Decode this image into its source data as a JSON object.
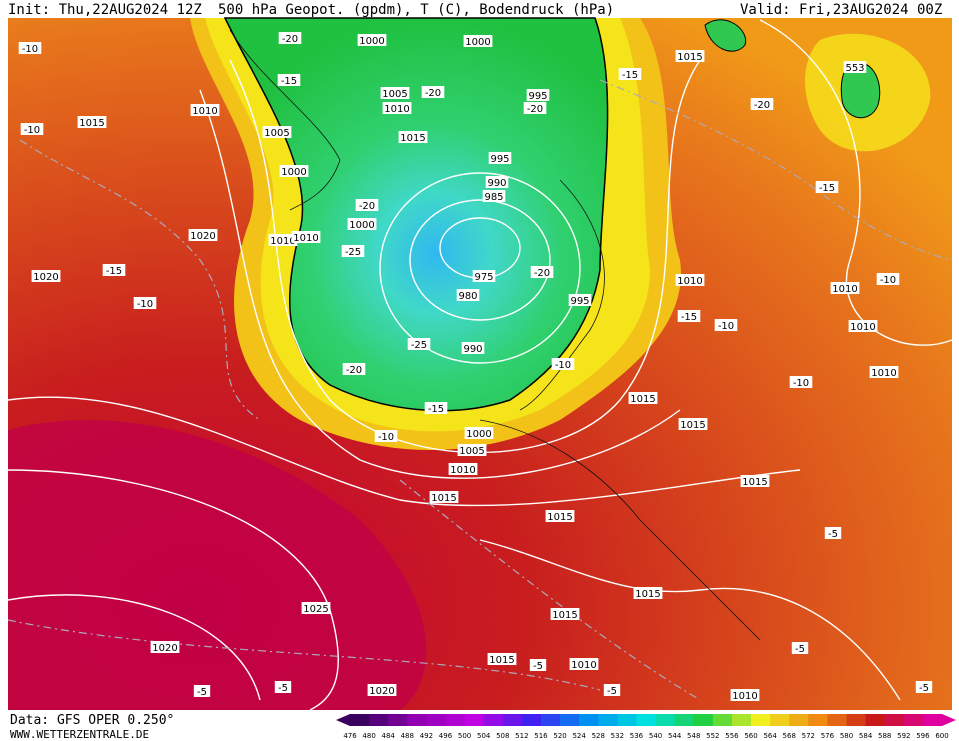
{
  "header": {
    "init": "Init: Thu,22AUG2024 12Z",
    "title": "500 hPa Geopot. (gpdm), T (C), Bodendruck (hPa)",
    "valid": "Valid: Fri,23AUG2024 00Z"
  },
  "footer": {
    "source": "Data: GFS OPER 0.250°",
    "site": "WWW.WETTERZENTRALE.DE"
  },
  "colorbar": {
    "labels": [
      476,
      480,
      484,
      488,
      492,
      496,
      500,
      504,
      508,
      512,
      516,
      520,
      524,
      528,
      532,
      536,
      540,
      544,
      548,
      552,
      556,
      560,
      564,
      568,
      572,
      576,
      580,
      584,
      588,
      592,
      596,
      600
    ]
  },
  "map_labels": [
    "1000",
    "1000",
    "1015",
    "1010",
    "1005",
    "1010",
    "1005",
    "1015",
    "995",
    "1015",
    "995",
    "1000",
    "990",
    "985",
    "1000",
    "1020",
    "1010",
    "1010",
    "975",
    "980",
    "995",
    "1020",
    "1010",
    "1010",
    "1010",
    "990",
    "1010",
    "1015",
    "1015",
    "1000",
    "1005",
    "1010",
    "1015",
    "1015",
    "1015",
    "1015",
    "1015",
    "1025",
    "1020",
    "1015",
    "1010",
    "1020",
    "1010",
    "553",
    "-20",
    "-15",
    "-10",
    "-15",
    "-10",
    "-20",
    "-20",
    "-15",
    "-20",
    "-15",
    "-20",
    "-25",
    "-20",
    "-10",
    "-15",
    "-10",
    "-25",
    "-20",
    "-10",
    "-10",
    "-15",
    "-10",
    "-5",
    "-5",
    "-5",
    "-5",
    "-5",
    "-5",
    "-5",
    "-10"
  ]
}
